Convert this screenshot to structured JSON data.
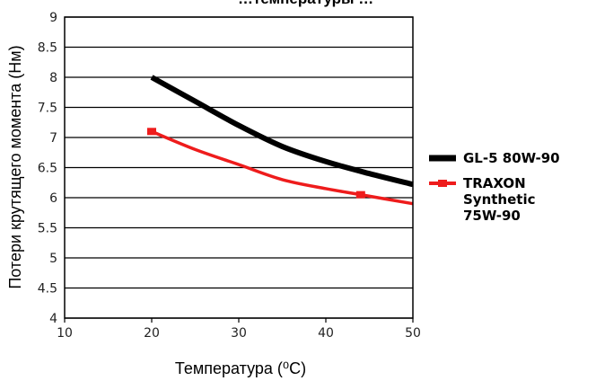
{
  "chart_data": {
    "type": "line",
    "title": "…температуры …",
    "xlabel": "Температура (⁰C)",
    "ylabel": "Потери крутящего момента (Нм)",
    "xlim": [
      10,
      50
    ],
    "ylim": [
      4,
      9
    ],
    "x_ticks": [
      "10",
      "20",
      "30",
      "40",
      "50"
    ],
    "y_ticks": [
      "4",
      "4.5",
      "5",
      "5.5",
      "6",
      "6.5",
      "7",
      "7.5",
      "8",
      "8.5",
      "9"
    ],
    "grid": "horizontal",
    "legend_position": "right",
    "series": [
      {
        "name": "GL-5 80W-90",
        "color": "#000000",
        "x": [
          20,
          25,
          30,
          35,
          40,
          45,
          50
        ],
        "y": [
          8.0,
          7.6,
          7.2,
          6.85,
          6.6,
          6.4,
          6.22
        ]
      },
      {
        "name": "TRAXON Synthetic 75W-90",
        "color": "#ee1c1c",
        "x": [
          20,
          25,
          30,
          35,
          40,
          44,
          50
        ],
        "y": [
          7.1,
          6.8,
          6.55,
          6.3,
          6.15,
          6.05,
          5.9
        ],
        "markers_x": [
          20,
          44
        ]
      }
    ]
  },
  "legend": {
    "items": [
      {
        "lines": [
          "GL-5 80W-90"
        ],
        "color": "#000000"
      },
      {
        "lines": [
          "TRAXON",
          "Synthetic",
          "75W-90"
        ],
        "color": "#ee1c1c"
      }
    ]
  }
}
